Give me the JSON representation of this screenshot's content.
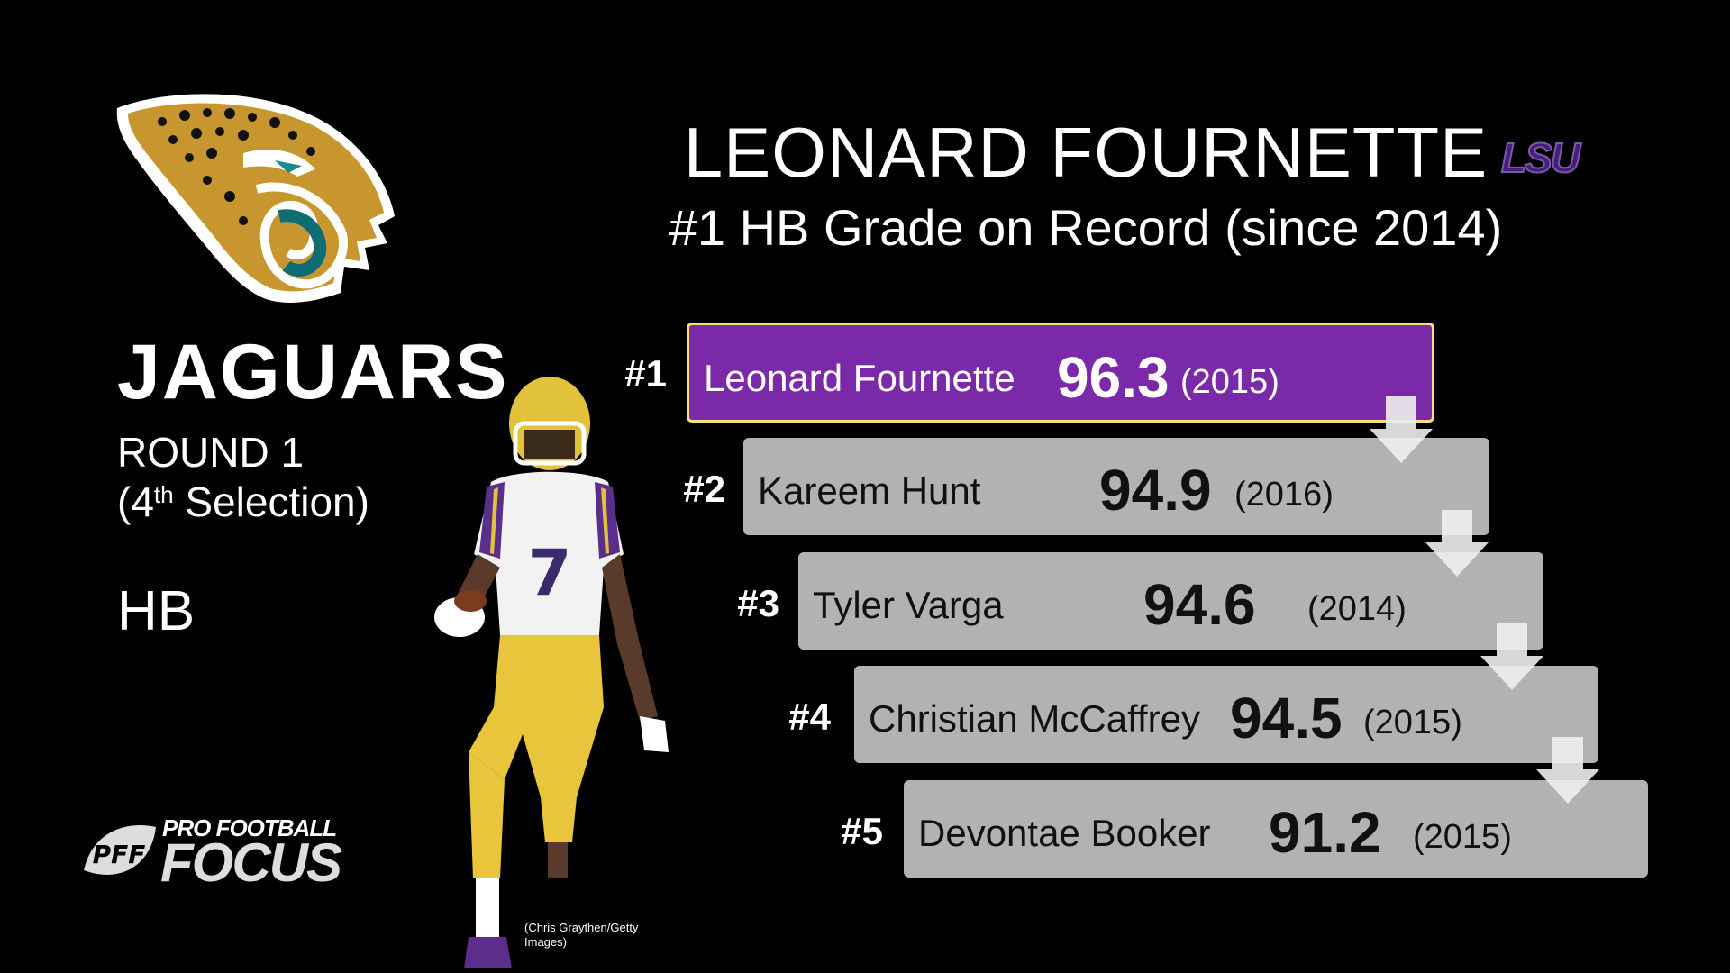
{
  "header": {
    "player_name": "LEONARD FOURNETTE",
    "subtitle": "#1 HB Grade on Record (since 2014)",
    "college_logo": "LSU"
  },
  "team": {
    "logo_icon": "jaguar-head-icon",
    "name": "JAGUARS",
    "round": "ROUND 1",
    "pick_open": "(4",
    "pick_suffix": "th",
    "pick_close": " Selection)",
    "position": "HB"
  },
  "photo": {
    "credit": "(Chris Graythen/Getty Images)"
  },
  "branding": {
    "logo_mark": "PFF",
    "logo_top": "PRO FOOTBALL",
    "logo_bottom": "FOCUS"
  },
  "colors": {
    "highlight_bar": "#7a2aa8",
    "highlight_border": "#f3e27a",
    "bar": "#b2b2b2",
    "lsu_purple": "#461d7c"
  },
  "rankings": [
    {
      "rank": "#1",
      "name": "Leonard Fournette",
      "grade": "96.3",
      "year": "(2015)"
    },
    {
      "rank": "#2",
      "name": "Kareem Hunt",
      "grade": "94.9",
      "year": "(2016)"
    },
    {
      "rank": "#3",
      "name": "Tyler Varga",
      "grade": "94.6",
      "year": "(2014)"
    },
    {
      "rank": "#4",
      "name": "Christian McCaffrey",
      "grade": "94.5",
      "year": "(2015)"
    },
    {
      "rank": "#5",
      "name": "Devontae Booker",
      "grade": "91.2",
      "year": "(2015)"
    }
  ]
}
